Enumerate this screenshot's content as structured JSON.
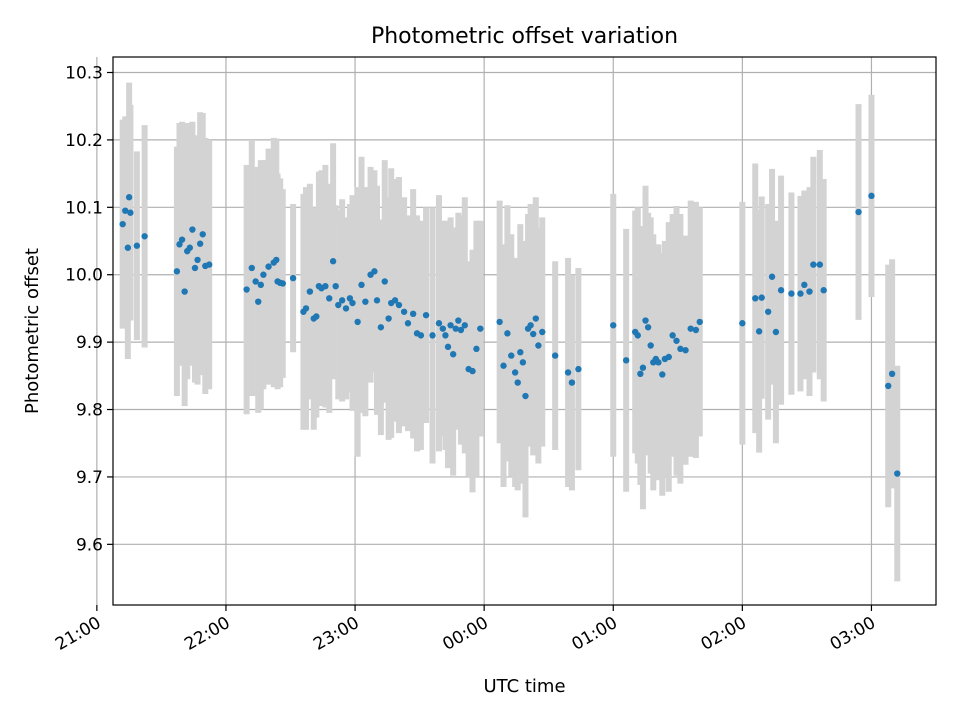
{
  "chart_data": {
    "type": "scatter",
    "title": "Photometric offset variation",
    "xlabel": "UTC time",
    "ylabel": "Photometric offset",
    "x_ticks": [
      "21:00",
      "22:00",
      "23:00",
      "00:00",
      "01:00",
      "02:00",
      "03:00"
    ],
    "y_ticks": [
      "9.6",
      "9.7",
      "9.8",
      "9.9",
      "10.0",
      "10.1",
      "10.2",
      "10.3"
    ],
    "xlim_hours": [
      -2.875,
      3.5
    ],
    "ylim": [
      9.51,
      10.323
    ],
    "grid": true,
    "colors": {
      "marker": "#1f77b4",
      "errorbar": "#d3d3d3",
      "grid": "#b0b0b0",
      "axes": "#000000"
    },
    "series": [
      {
        "x_hours": [
          -2.8,
          -2.78,
          -2.76,
          -2.75,
          -2.74,
          -2.69,
          -2.63,
          -2.38,
          -2.36,
          -2.34,
          -2.32,
          -2.3,
          -2.28,
          -2.26,
          -2.24,
          -2.22,
          -2.2,
          -2.18,
          -2.16,
          -2.13,
          -1.84,
          -1.8,
          -1.77,
          -1.75,
          -1.73,
          -1.71,
          -1.67,
          -1.63,
          -1.61,
          -1.6,
          -1.58,
          -1.56,
          -1.48,
          -1.4,
          -1.38,
          -1.35,
          -1.32,
          -1.3,
          -1.28,
          -1.26,
          -1.23,
          -1.2,
          -1.17,
          -1.15,
          -1.13,
          -1.1,
          -1.07,
          -1.04,
          -1.02,
          -0.98,
          -0.95,
          -0.92,
          -0.88,
          -0.85,
          -0.83,
          -0.8,
          -0.77,
          -0.74,
          -0.72,
          -0.69,
          -0.66,
          -0.62,
          -0.59,
          -0.55,
          -0.52,
          -0.49,
          -0.45,
          -0.4,
          -0.35,
          -0.32,
          -0.3,
          -0.28,
          -0.26,
          -0.24,
          -0.22,
          -0.2,
          -0.18,
          -0.15,
          -0.12,
          -0.09,
          -0.06,
          -0.03,
          0.12,
          0.15,
          0.18,
          0.21,
          0.24,
          0.26,
          0.28,
          0.3,
          0.32,
          0.34,
          0.36,
          0.38,
          0.4,
          0.42,
          0.45,
          0.55,
          0.65,
          0.68,
          0.73,
          1.0,
          1.1,
          1.17,
          1.19,
          1.21,
          1.23,
          1.25,
          1.27,
          1.29,
          1.31,
          1.33,
          1.35,
          1.38,
          1.4,
          1.43,
          1.46,
          1.49,
          1.52,
          1.56,
          1.6,
          1.64,
          1.67,
          2.0,
          2.1,
          2.13,
          2.15,
          2.2,
          2.23,
          2.26,
          2.3,
          2.38,
          2.45,
          2.48,
          2.52,
          2.55,
          2.6,
          2.63,
          2.9,
          3.0,
          3.13,
          3.16,
          3.2
        ],
        "y": [
          10.075,
          10.095,
          10.04,
          10.115,
          10.092,
          10.043,
          10.057,
          10.005,
          10.045,
          10.052,
          9.975,
          10.035,
          10.04,
          10.067,
          10.01,
          10.022,
          10.046,
          10.06,
          10.013,
          10.015,
          9.978,
          10.01,
          9.99,
          9.96,
          9.985,
          10.0,
          10.012,
          10.018,
          10.022,
          9.99,
          9.988,
          9.987,
          9.995,
          9.945,
          9.95,
          9.975,
          9.935,
          9.938,
          9.983,
          9.98,
          9.983,
          9.965,
          10.02,
          9.983,
          9.955,
          9.962,
          9.95,
          9.965,
          9.958,
          9.93,
          9.985,
          9.96,
          10.0,
          10.005,
          9.962,
          9.922,
          9.99,
          9.935,
          9.958,
          9.962,
          9.955,
          9.945,
          9.928,
          9.942,
          9.913,
          9.91,
          9.94,
          9.91,
          9.928,
          9.92,
          9.91,
          9.893,
          9.925,
          9.882,
          9.92,
          9.932,
          9.918,
          9.925,
          9.86,
          9.857,
          9.89,
          9.92,
          9.93,
          9.865,
          9.913,
          9.88,
          9.855,
          9.84,
          9.885,
          9.87,
          9.82,
          9.92,
          9.925,
          9.912,
          9.935,
          9.895,
          9.915,
          9.88,
          9.855,
          9.84,
          9.86,
          9.925,
          9.873,
          9.915,
          9.91,
          9.853,
          9.862,
          9.932,
          9.922,
          9.895,
          9.87,
          9.875,
          9.87,
          9.852,
          9.875,
          9.878,
          9.91,
          9.902,
          9.89,
          9.888,
          9.92,
          9.918,
          9.93,
          9.928,
          9.965,
          9.916,
          9.966,
          9.945,
          9.997,
          9.915,
          9.977,
          9.972,
          9.972,
          9.985,
          9.975,
          10.015,
          10.015,
          9.977,
          10.093,
          10.117,
          9.835,
          9.853,
          9.705
        ],
        "err": [
          0.155,
          0.14,
          0.165,
          0.17,
          0.16,
          0.14,
          0.165,
          0.185,
          0.18,
          0.175,
          0.17,
          0.19,
          0.175,
          0.16,
          0.17,
          0.185,
          0.195,
          0.18,
          0.19,
          0.185,
          0.185,
          0.19,
          0.17,
          0.165,
          0.185,
          0.17,
          0.175,
          0.185,
          0.18,
          0.16,
          0.155,
          0.14,
          0.11,
          0.175,
          0.18,
          0.16,
          0.165,
          0.15,
          0.17,
          0.175,
          0.18,
          0.17,
          0.175,
          0.12,
          0.14,
          0.15,
          0.135,
          0.14,
          0.16,
          0.2,
          0.19,
          0.17,
          0.16,
          0.15,
          0.17,
          0.16,
          0.18,
          0.18,
          0.2,
          0.18,
          0.19,
          0.17,
          0.16,
          0.185,
          0.175,
          0.17,
          0.16,
          0.19,
          0.19,
          0.16,
          0.17,
          0.18,
          0.16,
          0.18,
          0.15,
          0.16,
          0.17,
          0.19,
          0.16,
          0.18,
          0.19,
          0.16,
          0.18,
          0.18,
          0.19,
          0.18,
          0.17,
          0.16,
          0.19,
          0.18,
          0.18,
          0.17,
          0.18,
          0.18,
          0.18,
          0.175,
          0.17,
          0.14,
          0.17,
          0.16,
          0.15,
          0.195,
          0.195,
          0.18,
          0.19,
          0.165,
          0.21,
          0.2,
          0.17,
          0.19,
          0.19,
          0.17,
          0.175,
          0.18,
          0.175,
          0.2,
          0.18,
          0.2,
          0.2,
          0.17,
          0.19,
          0.19,
          0.17,
          0.18,
          0.2,
          0.18,
          0.15,
          0.16,
          0.16,
          0.165,
          0.17,
          0.15,
          0.145,
          0.14,
          0.155,
          0.16,
          0.17,
          0.165,
          0.16,
          0.15,
          0.18,
          0.17,
          0.16
        ]
      }
    ]
  }
}
